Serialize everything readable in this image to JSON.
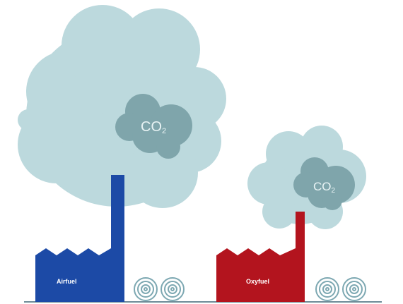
{
  "diagram": {
    "left": {
      "factory_label": "Airfuel",
      "emission_label": "CO",
      "emission_subscript": "2"
    },
    "right": {
      "factory_label": "Oxyfuel",
      "emission_label": "CO",
      "emission_subscript": "2"
    }
  },
  "colors": {
    "smoke": "#bcd9dd",
    "co2_cloud": "#7fa5ab",
    "airfuel_factory": "#1c4aa6",
    "oxyfuel_factory": "#b3141e",
    "coil": "#7da8b2",
    "ground": "#6f8c98"
  }
}
